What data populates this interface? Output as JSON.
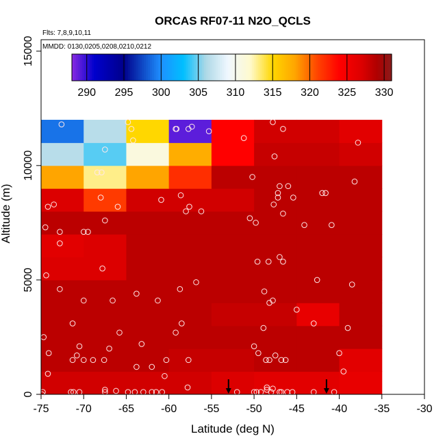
{
  "chart_data": {
    "type": "heatmap",
    "title": "ORCAS RF07-11 N2O_QCLS",
    "flights_note": "Flts: 7,8,9,10,11",
    "dates_note": "MMDD: 0130,0205,0208,0210,0212",
    "xlabel": "Latitude (deg N)",
    "ylabel": "Altitude (m)",
    "xlim": [
      -75,
      -30
    ],
    "ylim": [
      0,
      15500
    ],
    "xticks": [
      -75,
      -70,
      -65,
      -60,
      -55,
      -50,
      -45,
      -40,
      -35,
      -30
    ],
    "yticks": [
      0,
      5000,
      10000,
      15000
    ],
    "colorbar": {
      "min": 288,
      "max": 331,
      "ticks": [
        290,
        295,
        300,
        305,
        310,
        315,
        320,
        325,
        330
      ],
      "stops": [
        [
          288,
          "#8a2be2"
        ],
        [
          291,
          "#0000cd"
        ],
        [
          295,
          "#00008b"
        ],
        [
          300,
          "#1e90ff"
        ],
        [
          303,
          "#00bfff"
        ],
        [
          306,
          "#add8e6"
        ],
        [
          309,
          "#f0f8ff"
        ],
        [
          312,
          "#fffacd"
        ],
        [
          315,
          "#ffd700"
        ],
        [
          318,
          "#ffa500"
        ],
        [
          321,
          "#ff4500"
        ],
        [
          324,
          "#ff0000"
        ],
        [
          327,
          "#dc0000"
        ],
        [
          329,
          "#b00000"
        ],
        [
          331,
          "#8b1a1a"
        ]
      ]
    },
    "grid": {
      "lat_edges": [
        -75,
        -70,
        -65,
        -60,
        -55,
        -50,
        -45,
        -40,
        -35
      ],
      "alt_edges": [
        0,
        1000,
        2000,
        3000,
        4000,
        5000,
        6000,
        7000,
        8000,
        9000,
        10000,
        11000,
        12000
      ],
      "values": [
        [
          327.5,
          327.5,
          327.5,
          327.5,
          327.0,
          326.5,
          326.5,
          326.0
        ],
        [
          328.5,
          328.5,
          328.5,
          328.0,
          328.0,
          328.5,
          328.5,
          326.5
        ],
        [
          328.5,
          328.5,
          328.5,
          328.5,
          328.5,
          328.5,
          328.5,
          328.5
        ],
        [
          328.5,
          328.5,
          328.5,
          328.5,
          328.0,
          328.0,
          326.0,
          328.5
        ],
        [
          328.5,
          328.5,
          328.5,
          328.5,
          328.5,
          328.5,
          328.5,
          328.5
        ],
        [
          327.0,
          327.0,
          328.5,
          328.5,
          328.5,
          328.5,
          328.5,
          328.5
        ],
        [
          326.5,
          327.0,
          328.5,
          328.5,
          328.5,
          328.5,
          328.5,
          328.5
        ],
        [
          328.5,
          328.5,
          328.5,
          328.5,
          328.5,
          328.5,
          328.5,
          328.5
        ],
        [
          327.0,
          321.5,
          327.5,
          327.5,
          327.5,
          328.5,
          328.5,
          328.5
        ],
        [
          318.0,
          313.0,
          318.0,
          322.0,
          328.5,
          328.5,
          328.5,
          328.5
        ],
        [
          306.5,
          304.5,
          311.0,
          317.5,
          324.0,
          328.0,
          328.0,
          327.5
        ],
        [
          299.0,
          306.5,
          315.0,
          289.0,
          324.0,
          327.5,
          327.5,
          326.5
        ]
      ]
    },
    "arrows_lat": [
      -53,
      -41.5
    ],
    "points": [
      [
        -74.9,
        0
      ],
      [
        -74.8,
        100
      ],
      [
        -71.5,
        100
      ],
      [
        -71.2,
        100
      ],
      [
        -70.5,
        100
      ],
      [
        -67.5,
        100
      ],
      [
        -66.2,
        150
      ],
      [
        -64.8,
        100
      ],
      [
        -64,
        100
      ],
      [
        -63,
        100
      ],
      [
        -62,
        100
      ],
      [
        -61.5,
        100
      ],
      [
        -60.8,
        100
      ],
      [
        -57.8,
        300
      ],
      [
        -52,
        100
      ],
      [
        -50,
        100
      ],
      [
        -49.7,
        100
      ],
      [
        -49.2,
        100
      ],
      [
        -48.5,
        200
      ],
      [
        -48,
        100
      ],
      [
        -47,
        100
      ],
      [
        -46.8,
        100
      ],
      [
        -46.1,
        100
      ],
      [
        -45.5,
        100
      ],
      [
        -43,
        100
      ],
      [
        -40.6,
        100
      ],
      [
        -74.2,
        900
      ],
      [
        -67.5,
        200
      ],
      [
        -60.5,
        800
      ],
      [
        -48.5,
        300
      ],
      [
        -47.8,
        250
      ],
      [
        -39.5,
        1000
      ],
      [
        -74.7,
        2500
      ],
      [
        -74.1,
        1800
      ],
      [
        -71.3,
        1500
      ],
      [
        -70.8,
        1700
      ],
      [
        -70.5,
        2100
      ],
      [
        -70,
        1500
      ],
      [
        -68.9,
        1500
      ],
      [
        -67.6,
        1500
      ],
      [
        -67,
        2000
      ],
      [
        -65.8,
        2700
      ],
      [
        -63.8,
        1200
      ],
      [
        -63.2,
        2200
      ],
      [
        -62,
        1200
      ],
      [
        -60.3,
        1500
      ],
      [
        -59.2,
        2700
      ],
      [
        -58.5,
        3100
      ],
      [
        -57.7,
        1500
      ],
      [
        -50,
        2100
      ],
      [
        -49.5,
        1800
      ],
      [
        -48.9,
        2900
      ],
      [
        -48.6,
        1500
      ],
      [
        -48.2,
        1500
      ],
      [
        -47.5,
        1700
      ],
      [
        -46.8,
        1500
      ],
      [
        -46.3,
        1500
      ],
      [
        -40,
        1800
      ],
      [
        -39,
        2900
      ],
      [
        -74.4,
        5200
      ],
      [
        -72.8,
        4600
      ],
      [
        -71.3,
        3100
      ],
      [
        -70,
        4100
      ],
      [
        -67.8,
        5500
      ],
      [
        -66.6,
        4100
      ],
      [
        -63.8,
        4400
      ],
      [
        -61.3,
        4100
      ],
      [
        -58.7,
        4600
      ],
      [
        -56.8,
        4900
      ],
      [
        -48.8,
        4500
      ],
      [
        -48.2,
        4000
      ],
      [
        -47.8,
        4100
      ],
      [
        -45,
        3700
      ],
      [
        -43,
        3100
      ],
      [
        -42.6,
        5000
      ],
      [
        -38.5,
        4800
      ],
      [
        -74.5,
        7300
      ],
      [
        -74.2,
        8200
      ],
      [
        -73.5,
        8300
      ],
      [
        -72.8,
        7100
      ],
      [
        -72.8,
        6600
      ],
      [
        -70,
        7100
      ],
      [
        -69.5,
        7100
      ],
      [
        -67.5,
        7600
      ],
      [
        -66,
        8200
      ],
      [
        -68,
        8600
      ],
      [
        -60.9,
        8500
      ],
      [
        -58.6,
        8700
      ],
      [
        -58,
        8000
      ],
      [
        -57.6,
        8200
      ],
      [
        -56.2,
        8000
      ],
      [
        -50.5,
        7700
      ],
      [
        -49.8,
        7500
      ],
      [
        -49.6,
        5800
      ],
      [
        -48.3,
        5800
      ],
      [
        -47.7,
        8300
      ],
      [
        -47.2,
        8800
      ],
      [
        -47,
        6000
      ],
      [
        -46.6,
        7900
      ],
      [
        -46.6,
        5800
      ],
      [
        -45.4,
        8600
      ],
      [
        -44.1,
        7400
      ],
      [
        -42,
        8800
      ],
      [
        -41.6,
        8800
      ],
      [
        -40.9,
        7400
      ],
      [
        -38.2,
        9300
      ],
      [
        -72.6,
        11800
      ],
      [
        -68.4,
        9700
      ],
      [
        -67.9,
        9700
      ],
      [
        -67.5,
        10700
      ],
      [
        -64.8,
        11900
      ],
      [
        -64.4,
        11600
      ],
      [
        -64.2,
        11100
      ],
      [
        -59.2,
        11600
      ],
      [
        -59.1,
        11600
      ],
      [
        -57.7,
        11600
      ],
      [
        -57.3,
        11700
      ],
      [
        -55.3,
        11500
      ],
      [
        -51.2,
        11200
      ],
      [
        -50.2,
        9500
      ],
      [
        -47.8,
        11900
      ],
      [
        -47.6,
        10400
      ],
      [
        -47.2,
        8600
      ],
      [
        -47,
        9100
      ],
      [
        -46.6,
        11600
      ],
      [
        -46,
        9100
      ],
      [
        -37.8,
        11000
      ]
    ]
  }
}
